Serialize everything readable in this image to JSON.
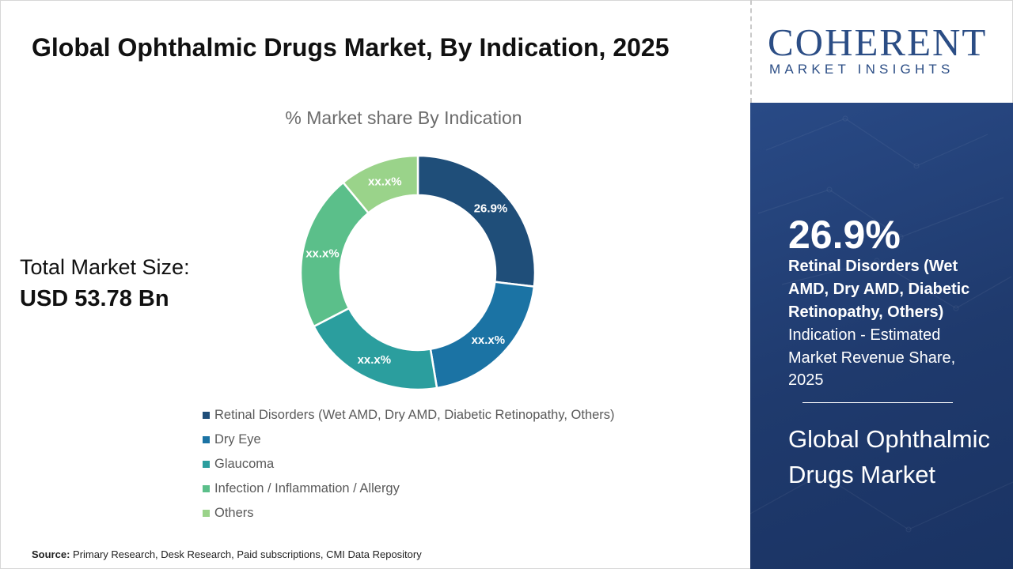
{
  "header": {
    "title": "Global Ophthalmic Drugs Market, By Indication, 2025"
  },
  "summary": {
    "total_label": "Total Market Size:",
    "total_value": "USD 53.78 Bn"
  },
  "chart_data": {
    "type": "pie",
    "style": "donut",
    "title": "% Market share By Indication",
    "legend_position": "bottom-left",
    "categories": [
      "Retinal Disorders (Wet AMD, Dry AMD, Diabetic Retinopathy, Others)",
      "Dry Eye",
      "Glaucoma",
      "Infection / Inflammation / Allergy",
      "Others"
    ],
    "values": [
      26.9,
      20.5,
      20.0,
      21.6,
      11.0
    ],
    "data_labels": [
      "26.9%",
      "xx.x%",
      "xx.x%",
      "xx.x%",
      "xx.x%"
    ],
    "colors": [
      "#1f4e79",
      "#1b73a4",
      "#2b9e9e",
      "#5bbf8a",
      "#9ad38a"
    ]
  },
  "source": {
    "label": "Source:",
    "text": " Primary Research, Desk Research, Paid subscriptions, CMI Data Repository"
  },
  "brand": {
    "word": "COHERENT",
    "subtitle": "MARKET INSIGHTS",
    "color": "#2b4d85"
  },
  "highlight": {
    "value": "26.9%",
    "segment": "Retinal Disorders (Wet AMD, Dry AMD, Diabetic Retinopathy, Others)",
    "description": "Indication - Estimated Market Revenue Share, 2025",
    "market_name": "Global Ophthalmic Drugs Market",
    "background": "#23427a"
  }
}
